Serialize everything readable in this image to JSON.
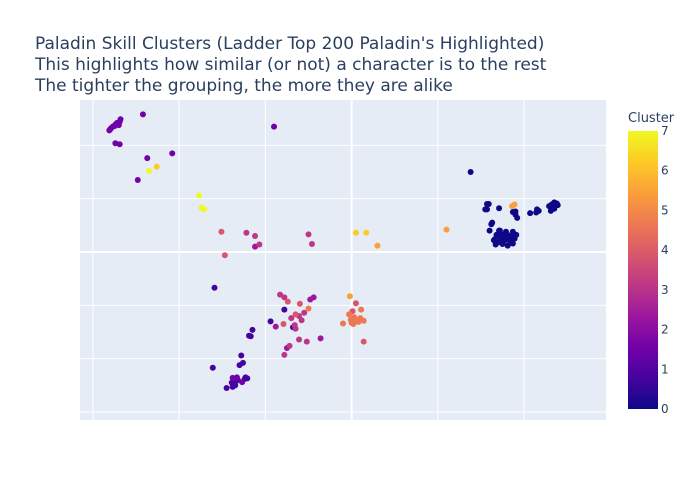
{
  "chart_data": {
    "type": "scatter",
    "title_lines": [
      "Paladin Skill Clusters (Ladder Top 200 Paladin's Highlighted)",
      "This highlights how similar (or not) a character is to the rest",
      "The tighter the grouping, the more they are alike"
    ],
    "xlabel": "",
    "ylabel": "",
    "axes_tick_labels_shown": false,
    "grid": true,
    "plot_background": "#e5ecf6",
    "xlim": [
      -1.5,
      59.5
    ],
    "ylim": [
      -1.5,
      58.5
    ],
    "colorbar": {
      "title": "Cluster",
      "range": [
        0,
        7
      ],
      "ticks": [
        "0",
        "1",
        "2",
        "3",
        "4",
        "5",
        "6",
        "7"
      ],
      "colorscale": [
        "#0d0887",
        "#46039f",
        "#7201a8",
        "#9c179e",
        "#bd3786",
        "#d8576b",
        "#ed7953",
        "#fb9f3a",
        "#fdca26",
        "#f0f921"
      ]
    },
    "series": [
      {
        "cluster": 0,
        "color": "#0d0887",
        "points": [
          [
            43.8,
            45.0
          ],
          [
            45.5,
            38.0
          ],
          [
            45.7,
            38.0
          ],
          [
            45.7,
            39.0
          ],
          [
            45.9,
            39.0
          ],
          [
            46.0,
            34.0
          ],
          [
            46.2,
            35.2
          ],
          [
            46.3,
            35.5
          ],
          [
            46.5,
            32.2
          ],
          [
            46.6,
            32.4
          ],
          [
            46.7,
            31.4
          ],
          [
            46.8,
            33.2
          ],
          [
            47.0,
            31.8
          ],
          [
            47.0,
            33.0
          ],
          [
            47.1,
            34.0
          ],
          [
            47.1,
            38.2
          ],
          [
            47.2,
            33.4
          ],
          [
            47.2,
            34.0
          ],
          [
            47.3,
            32.6
          ],
          [
            47.5,
            33.2
          ],
          [
            47.5,
            31.5
          ],
          [
            47.6,
            32.0
          ],
          [
            47.8,
            32.4
          ],
          [
            47.9,
            33.8
          ],
          [
            47.9,
            32.3
          ],
          [
            48.1,
            33.2
          ],
          [
            48.1,
            31.2
          ],
          [
            48.3,
            32.9
          ],
          [
            48.4,
            32.1
          ],
          [
            48.6,
            33.0
          ],
          [
            48.7,
            37.5
          ],
          [
            48.7,
            33.8
          ],
          [
            48.8,
            32.5
          ],
          [
            49.0,
            37.0
          ],
          [
            49.1,
            33.2
          ],
          [
            49.2,
            36.4
          ],
          [
            48.9,
            32.5
          ],
          [
            48.7,
            31.6
          ],
          [
            49.0,
            37.6
          ],
          [
            50.7,
            37.3
          ],
          [
            51.4,
            37.4
          ],
          [
            51.7,
            37.7
          ],
          [
            51.5,
            38.0
          ],
          [
            52.9,
            38.6
          ],
          [
            53.3,
            38.4
          ],
          [
            53.1,
            37.7
          ],
          [
            53.3,
            38.9
          ],
          [
            53.5,
            39.3
          ],
          [
            53.6,
            38.8
          ],
          [
            53.8,
            39.1
          ],
          [
            53.9,
            38.8
          ],
          [
            53.5,
            38.1
          ],
          [
            53.2,
            38.9
          ]
        ]
      },
      {
        "cluster": 1,
        "color": "#46039f",
        "points": [
          [
            15.5,
            4.5
          ],
          [
            16.1,
            5.5
          ],
          [
            16.2,
            4.7
          ],
          [
            16.4,
            5.4
          ],
          [
            16.5,
            5.0
          ],
          [
            16.6,
            5.8
          ],
          [
            16.8,
            6.0
          ],
          [
            17.0,
            8.8
          ],
          [
            17.2,
            10.6
          ],
          [
            17.4,
            9.2
          ],
          [
            17.6,
            6.2
          ],
          [
            17.7,
            6.5
          ],
          [
            17.9,
            6.3
          ],
          [
            18.1,
            14.3
          ],
          [
            18.3,
            14.2
          ],
          [
            18.5,
            15.4
          ],
          [
            20.6,
            17.0
          ],
          [
            22.2,
            19.2
          ],
          [
            23.2,
            15.9
          ],
          [
            14.1,
            23.3
          ],
          [
            13.9,
            8.3
          ]
        ]
      },
      {
        "cluster": 2,
        "color": "#7201a8",
        "points": [
          [
            1.9,
            52.8
          ],
          [
            2.0,
            53.0
          ],
          [
            2.1,
            53.2
          ],
          [
            2.3,
            53.5
          ],
          [
            2.5,
            53.6
          ],
          [
            2.6,
            53.9
          ],
          [
            2.8,
            54.2
          ],
          [
            3.0,
            53.8
          ],
          [
            3.1,
            54.4
          ],
          [
            3.2,
            54.9
          ],
          [
            2.6,
            50.4
          ],
          [
            3.1,
            50.2
          ],
          [
            5.8,
            55.8
          ],
          [
            6.3,
            47.6
          ],
          [
            5.2,
            43.5
          ],
          [
            9.2,
            48.5
          ],
          [
            21.0,
            53.5
          ],
          [
            17.3,
            5.6
          ],
          [
            16.7,
            6.5
          ],
          [
            16.2,
            6.4
          ]
        ]
      },
      {
        "cluster": 3,
        "color": "#9c179e",
        "points": [
          [
            18.8,
            31.0
          ],
          [
            25.2,
            21.1
          ],
          [
            25.6,
            21.5
          ],
          [
            26.4,
            13.8
          ],
          [
            21.2,
            16.0
          ],
          [
            22.5,
            12.0
          ]
        ]
      },
      {
        "cluster": 4,
        "color": "#bd3786",
        "points": [
          [
            17.8,
            33.6
          ],
          [
            18.8,
            33.0
          ],
          [
            19.3,
            31.4
          ],
          [
            25.0,
            33.3
          ],
          [
            25.4,
            31.5
          ],
          [
            21.7,
            22.0
          ],
          [
            22.2,
            21.5
          ],
          [
            23.0,
            17.6
          ],
          [
            23.4,
            16.3
          ],
          [
            23.5,
            15.6
          ],
          [
            23.9,
            18.0
          ],
          [
            24.2,
            17.2
          ],
          [
            24.5,
            18.6
          ],
          [
            24.8,
            13.2
          ],
          [
            22.8,
            12.4
          ],
          [
            22.2,
            10.7
          ],
          [
            23.9,
            13.6
          ]
        ]
      },
      {
        "cluster": 5,
        "color": "#d8576b",
        "points": [
          [
            14.9,
            33.8
          ],
          [
            15.3,
            29.4
          ],
          [
            23.5,
            18.3
          ],
          [
            24.0,
            20.3
          ],
          [
            30.1,
            18.9
          ],
          [
            30.5,
            20.4
          ],
          [
            31.4,
            13.2
          ],
          [
            22.6,
            20.7
          ],
          [
            22.1,
            16.5
          ]
        ]
      },
      {
        "cluster": 6,
        "color": "#ed7953",
        "points": [
          [
            25.0,
            19.4
          ],
          [
            29.7,
            18.3
          ],
          [
            29.9,
            17.3
          ],
          [
            30.0,
            16.7
          ],
          [
            30.2,
            16.5
          ],
          [
            30.4,
            17.0
          ],
          [
            30.6,
            17.2
          ],
          [
            30.8,
            16.9
          ],
          [
            31.0,
            17.6
          ],
          [
            31.1,
            19.2
          ],
          [
            31.4,
            17.1
          ],
          [
            29.0,
            16.6
          ],
          [
            30.3,
            17.8
          ]
        ]
      },
      {
        "cluster": 7,
        "color": "#fb9f3a",
        "points": [
          [
            29.8,
            21.7
          ],
          [
            33.0,
            31.2
          ],
          [
            48.9,
            38.9
          ],
          [
            48.6,
            38.6
          ],
          [
            41.0,
            34.2
          ]
        ]
      },
      {
        "cluster": 8,
        "color": "#fdca26",
        "points": [
          [
            7.4,
            46.0
          ],
          [
            31.7,
            33.6
          ],
          [
            30.5,
            33.6
          ]
        ]
      },
      {
        "cluster": 9,
        "color": "#f0f921",
        "points": [
          [
            6.5,
            45.2
          ],
          [
            12.3,
            40.6
          ],
          [
            12.6,
            38.3
          ],
          [
            12.9,
            38.0
          ]
        ]
      }
    ]
  }
}
